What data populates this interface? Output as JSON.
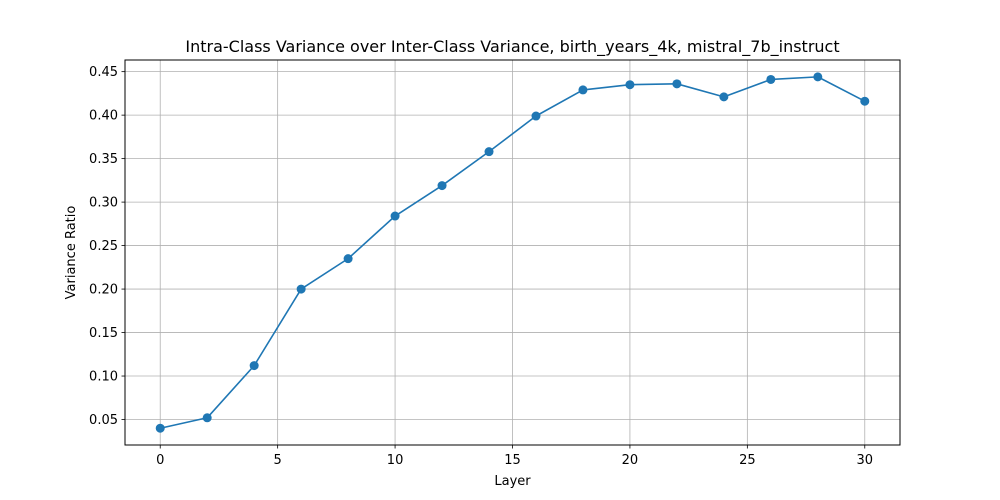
{
  "chart_data": {
    "type": "line",
    "title": "Intra-Class Variance over Inter-Class Variance, birth_years_4k, mistral_7b_instruct",
    "xlabel": "Layer",
    "ylabel": "Variance Ratio",
    "x": [
      0,
      2,
      4,
      6,
      8,
      10,
      12,
      14,
      16,
      18,
      20,
      22,
      24,
      26,
      28,
      30
    ],
    "series": [
      {
        "values": [
          0.04,
          0.052,
          0.112,
          0.2,
          0.235,
          0.284,
          0.319,
          0.358,
          0.399,
          0.429,
          0.435,
          0.436,
          0.421,
          0.441,
          0.444,
          0.416
        ],
        "color": "#1f77b4",
        "marker": "circle"
      }
    ],
    "xlim": [
      -1.5,
      31.5
    ],
    "ylim": [
      0.0207,
      0.4634
    ],
    "xticks": [
      0,
      5,
      10,
      15,
      20,
      25,
      30
    ],
    "xtick_labels": [
      "0",
      "5",
      "10",
      "15",
      "20",
      "25",
      "30"
    ],
    "yticks": [
      0.05,
      0.1,
      0.15,
      0.2,
      0.25,
      0.3,
      0.35,
      0.4,
      0.45
    ],
    "ytick_labels": [
      "0.05",
      "0.10",
      "0.15",
      "0.20",
      "0.25",
      "0.30",
      "0.35",
      "0.40",
      "0.45"
    ],
    "grid": true,
    "grid_color": "#b0b0b0",
    "legend": "none"
  }
}
